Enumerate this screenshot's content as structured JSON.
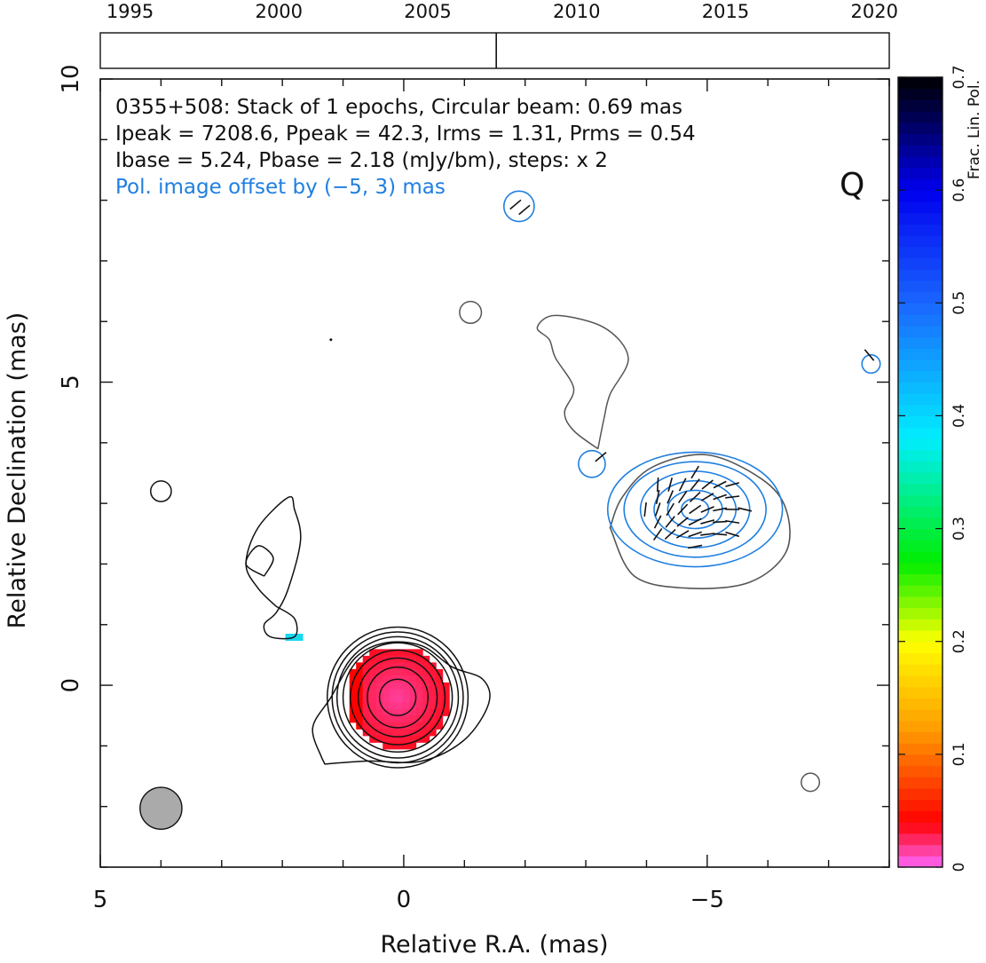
{
  "chart_data": {
    "type": "contour",
    "source": "0355+508",
    "info_lines": [
      "0355+508: Stack of 1 epochs, Circular beam: 0.69 mas",
      "Ipeak = 7208.6, Ppeak = 42.3, Irms = 1.31, Prms = 0.54",
      "Ibase = 5.24, Pbase = 2.18 (mJy/bm), steps: x 2",
      "Pol. image offset by (−5, 3) mas"
    ],
    "band": "Q",
    "xlabel": "Relative R.A. (mas)",
    "ylabel": "Relative Declination (mas)",
    "colorbar_label": "Frac. Lin. Pol.",
    "xlim": [
      5,
      -8
    ],
    "ylim": [
      -3,
      10
    ],
    "x_ticks": [
      {
        "v": 5,
        "label": "5"
      },
      {
        "v": 0,
        "label": "0"
      },
      {
        "v": -5,
        "label": "−5"
      }
    ],
    "y_ticks": [
      {
        "v": 10,
        "label": "10"
      },
      {
        "v": 5,
        "label": "5"
      },
      {
        "v": 0,
        "label": "0"
      }
    ],
    "colorbar_range": [
      0,
      0.7
    ],
    "colorbar_ticks": [
      "0",
      "0.1",
      "0.2",
      "0.3",
      "0.4",
      "0.5",
      "0.6",
      "0.7"
    ],
    "year_ticks": [
      "1995",
      "2000",
      "2005",
      "2010",
      "2015",
      "2020"
    ],
    "epoch_years": [
      2007.3
    ],
    "beam_diameter_mas": 0.69,
    "beam_center": [
      4.0,
      -2.0
    ],
    "total_intensity_contours": {
      "core": {
        "center": [
          0.1,
          -0.2
        ],
        "radii": [
          0.3,
          0.5,
          0.65,
          0.78,
          0.9,
          1.0,
          1.08,
          1.16
        ]
      },
      "outer_core": [
        [
          1.35,
          -1.2
        ],
        [
          1.5,
          -0.7
        ],
        [
          1.2,
          -0.2
        ],
        [
          0.8,
          0.45
        ],
        [
          0.3,
          0.7
        ],
        [
          -0.3,
          0.65
        ],
        [
          -0.8,
          0.3
        ],
        [
          -1.3,
          0.1
        ],
        [
          -1.4,
          -0.3
        ],
        [
          -1.0,
          -0.9
        ],
        [
          -0.3,
          -1.25
        ],
        [
          0.6,
          -1.25
        ],
        [
          1.3,
          -1.3
        ]
      ],
      "jet_loop": [
        [
          2.1,
          1.3
        ],
        [
          2.4,
          1.6
        ],
        [
          2.6,
          2.0
        ],
        [
          2.4,
          2.6
        ],
        [
          1.9,
          3.1
        ],
        [
          1.8,
          2.9
        ],
        [
          1.7,
          2.4
        ],
        [
          1.9,
          1.6
        ],
        [
          2.1,
          1.2
        ],
        [
          2.3,
          1.0
        ],
        [
          2.2,
          0.8
        ],
        [
          1.8,
          0.8
        ],
        [
          1.8,
          1.1
        ],
        [
          2.1,
          1.3
        ]
      ],
      "jet_inner_loop": [
        [
          2.3,
          1.8
        ],
        [
          2.6,
          2.0
        ],
        [
          2.4,
          2.3
        ],
        [
          2.15,
          2.1
        ],
        [
          2.3,
          1.8
        ]
      ],
      "blob_ne": {
        "center": [
          4.0,
          3.2
        ],
        "r": 0.17
      },
      "blob_top": {
        "center": [
          -1.1,
          6.15
        ],
        "r": 0.18
      },
      "dot": {
        "center": [
          1.2,
          5.7
        ],
        "r": 0.02
      }
    },
    "polarization_contours": {
      "knot_outer": [
        [
          -3.4,
          2.6
        ],
        [
          -3.6,
          3.1
        ],
        [
          -4.1,
          3.6
        ],
        [
          -5.0,
          3.8
        ],
        [
          -5.9,
          3.4
        ],
        [
          -6.3,
          2.9
        ],
        [
          -6.3,
          2.2
        ],
        [
          -5.7,
          1.7
        ],
        [
          -4.7,
          1.6
        ],
        [
          -3.8,
          1.8
        ],
        [
          -3.4,
          2.6
        ]
      ],
      "knot_levels": [
        {
          "center": [
            -4.8,
            2.9
          ],
          "rx": 1.6,
          "ry": 0.9
        },
        {
          "center": [
            -4.8,
            2.9
          ],
          "rx": 1.3,
          "ry": 0.75
        },
        {
          "center": [
            -4.8,
            2.9
          ],
          "rx": 1.0,
          "ry": 0.6
        },
        {
          "center": [
            -4.8,
            2.9
          ],
          "rx": 0.75,
          "ry": 0.45
        },
        {
          "center": [
            -4.8,
            2.9
          ],
          "rx": 0.5,
          "ry": 0.3
        },
        {
          "center": [
            -4.8,
            2.9
          ],
          "rx": 0.25,
          "ry": 0.17
        }
      ],
      "small_blobs": [
        {
          "center": [
            -3.1,
            3.65
          ],
          "r": 0.22
        },
        {
          "center": [
            -1.9,
            7.9
          ],
          "r": 0.25
        },
        {
          "center": [
            -7.7,
            5.3
          ],
          "r": 0.15
        }
      ],
      "se_blob": {
        "center": [
          -6.7,
          -1.6
        ],
        "r": 0.15
      },
      "upper_ridge": [
        [
          -3.2,
          3.9
        ],
        [
          -2.8,
          4.2
        ],
        [
          -2.65,
          4.5
        ],
        [
          -2.8,
          4.9
        ],
        [
          -2.5,
          5.4
        ],
        [
          -2.4,
          5.7
        ],
        [
          -2.2,
          5.9
        ],
        [
          -2.5,
          6.1
        ],
        [
          -3.3,
          5.9
        ],
        [
          -3.7,
          5.4
        ],
        [
          -3.4,
          4.8
        ],
        [
          -3.3,
          4.4
        ],
        [
          -3.2,
          3.9
        ]
      ]
    },
    "fractional_polarization_map": {
      "center": [
        0.1,
        -0.2
      ],
      "radius": 0.85,
      "value_range": [
        0.0,
        0.05
      ]
    }
  }
}
